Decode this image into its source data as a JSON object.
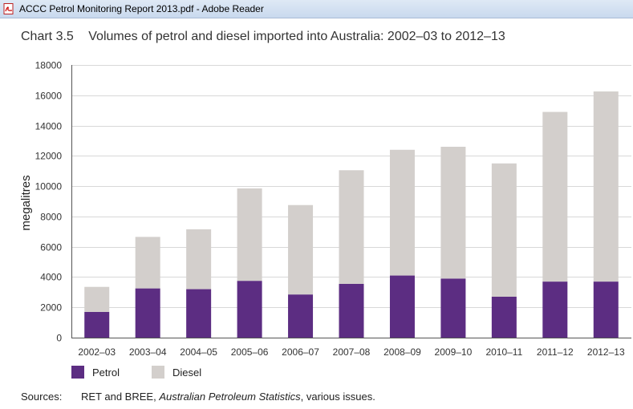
{
  "window": {
    "title": "ACCC Petrol Monitoring Report 2013.pdf - Adobe Reader",
    "icon": "pdf-document-icon"
  },
  "heading": {
    "number": "Chart 3.5",
    "text": "Volumes of petrol and diesel imported into Australia: 2002–03 to 2012–13"
  },
  "chart_data": {
    "type": "bar",
    "stacked": true,
    "categories": [
      "2002–03",
      "2003–04",
      "2004–05",
      "2005–06",
      "2006–07",
      "2007–08",
      "2008–09",
      "2009–10",
      "2010–11",
      "2011–12",
      "2012–13"
    ],
    "series": [
      {
        "name": "Petrol",
        "color": "#5c2d82",
        "values": [
          1700,
          3250,
          3200,
          3750,
          2850,
          3550,
          4100,
          3900,
          2700,
          3700,
          3700
        ]
      },
      {
        "name": "Diesel",
        "color": "#d3cfcc",
        "values": [
          1650,
          3400,
          3950,
          6100,
          5900,
          7500,
          8300,
          8700,
          8800,
          11200,
          12550
        ]
      }
    ],
    "ylabel": "megalitres",
    "xlabel": "",
    "ylim": [
      0,
      18000
    ],
    "yticks": [
      0,
      2000,
      4000,
      6000,
      8000,
      10000,
      12000,
      14000,
      16000,
      18000
    ],
    "grid": true,
    "legend_position": "bottom-left"
  },
  "sources": {
    "label": "Sources:",
    "text_prefix": "RET and BREE, ",
    "text_italic": "Australian Petroleum Statistics",
    "text_suffix": ", various issues."
  }
}
